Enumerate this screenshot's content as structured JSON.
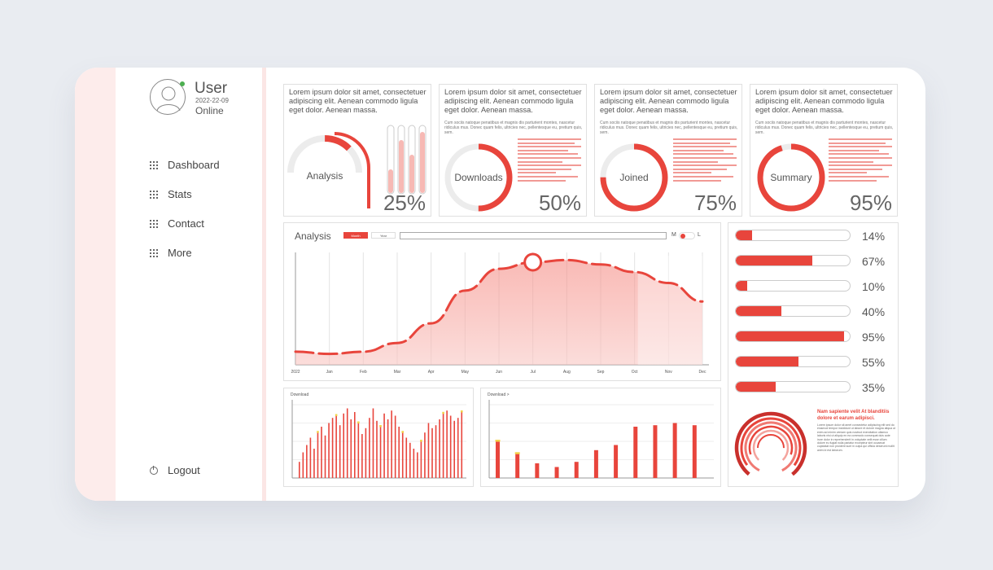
{
  "user": {
    "name": "User",
    "date": "2022-22-09",
    "status": "Online"
  },
  "nav": {
    "items": [
      {
        "label": "Dashboard"
      },
      {
        "label": "Stats"
      },
      {
        "label": "Contact"
      },
      {
        "label": "More"
      }
    ],
    "logout_label": "Logout"
  },
  "cards": [
    {
      "text": "Lorem ipsum dolor sit amet, consectetuer adipiscing elit. Aenean commodo ligula eget dolor. Aenean massa.",
      "label": "Analysis",
      "percent": "25%",
      "value": 25
    },
    {
      "text": "Lorem ipsum dolor sit amet, consectetuer adipiscing elit. Aenean commodo ligula eget dolor. Aenean massa.",
      "fine_text": "Cum sociis natoque penatibus et magnis dis parturient montes, nascetur ridiculus mus. Donec quam felis, ultricies nec, pellentesque eu, pretium quis, sem.",
      "label": "Downloads",
      "percent": "50%",
      "value": 50
    },
    {
      "text": "Lorem ipsum dolor sit amet, consectetuer adipiscing elit. Aenean commodo ligula eget dolor. Aenean massa.",
      "fine_text": "Cum sociis natoque penatibus et magnis dis parturient montes, nascetur ridiculus mus. Donec quam felis, ultricies nec, pellentesque eu, pretium quis, sem.",
      "label": "Joined",
      "percent": "75%",
      "value": 75
    },
    {
      "text": "Lorem ipsum dolor sit amet, consectetuer adipiscing elit. Aenean commodo ligula eget dolor. Aenean massa.",
      "fine_text": "Cum sociis natoque penatibus et magnis dis parturient montes, nascetur ridiculus mus. Donec quam felis, ultricies nec, pellentesque eu, pretium quis, sem.",
      "label": "Summary",
      "percent": "95%",
      "value": 95
    }
  ],
  "analysis": {
    "title": "Analysis",
    "range_buttons": [
      "Month",
      "Year"
    ],
    "toggle_left": "M",
    "toggle_right": "L"
  },
  "progress": [
    {
      "label": "14%",
      "value": 14
    },
    {
      "label": "67%",
      "value": 67
    },
    {
      "label": "10%",
      "value": 10
    },
    {
      "label": "40%",
      "value": 40
    },
    {
      "label": "95%",
      "value": 95
    },
    {
      "label": "55%",
      "value": 55
    },
    {
      "label": "35%",
      "value": 35
    }
  ],
  "summary_panel": {
    "title": "Nam sapiente velit At blanditiis dolore et earum adipisci.",
    "body": "Lorem ipsum dolor sit amet consectetur adipiscing elit sed do eiusmod tempor incididunt ut labore et dolore magna aliqua ut enim ad minim veniam quis nostrud exercitation ullamco laboris nisi ut aliquip ex ea commodo consequat duis aute irure dolor in reprehenderit in voluptate velit esse cillum dolore eu fugiat nulla pariatur excepteur sint occaecat cupidatat non proident sunt in culpa qui officia deserunt mollit anim id est laborum."
  },
  "colors": {
    "accent": "#e8453c",
    "accent_light": "#f7b9b4",
    "highlight": "#f3d34a",
    "panel_border": "#e0e0e0"
  },
  "chart_data": [
    {
      "type": "area",
      "title": "Analysis",
      "categories": [
        "2022",
        "Jan",
        "Feb",
        "Mar",
        "Apr",
        "May",
        "Jun",
        "Jul",
        "Aug",
        "Sep",
        "Oct",
        "Nov",
        "Dec"
      ],
      "values": [
        12,
        10,
        12,
        20,
        38,
        68,
        88,
        94,
        96,
        92,
        85,
        75,
        58
      ],
      "highlight_index": 7,
      "ylim": [
        0,
        100
      ],
      "grid": true
    },
    {
      "type": "bar",
      "title": "Download",
      "values": [
        22,
        35,
        45,
        55,
        40,
        62,
        70,
        58,
        75,
        82,
        85,
        72,
        88,
        95,
        80,
        90,
        75,
        60,
        68,
        82,
        95,
        78,
        70,
        88,
        80,
        92,
        85,
        70,
        62,
        55,
        48,
        40,
        35,
        50,
        62,
        75,
        68,
        72,
        80,
        88,
        92,
        85,
        78,
        82,
        90
      ],
      "highlighted": [
        5,
        10,
        16,
        22,
        28,
        33,
        39,
        44
      ],
      "ylim": [
        0,
        100
      ]
    },
    {
      "type": "bar",
      "title": "Download >",
      "values": [
        50,
        33,
        20,
        15,
        22,
        38,
        45,
        70,
        72,
        75,
        72
      ],
      "highlighted": [
        0,
        1
      ],
      "ylim": [
        0,
        100
      ]
    }
  ]
}
